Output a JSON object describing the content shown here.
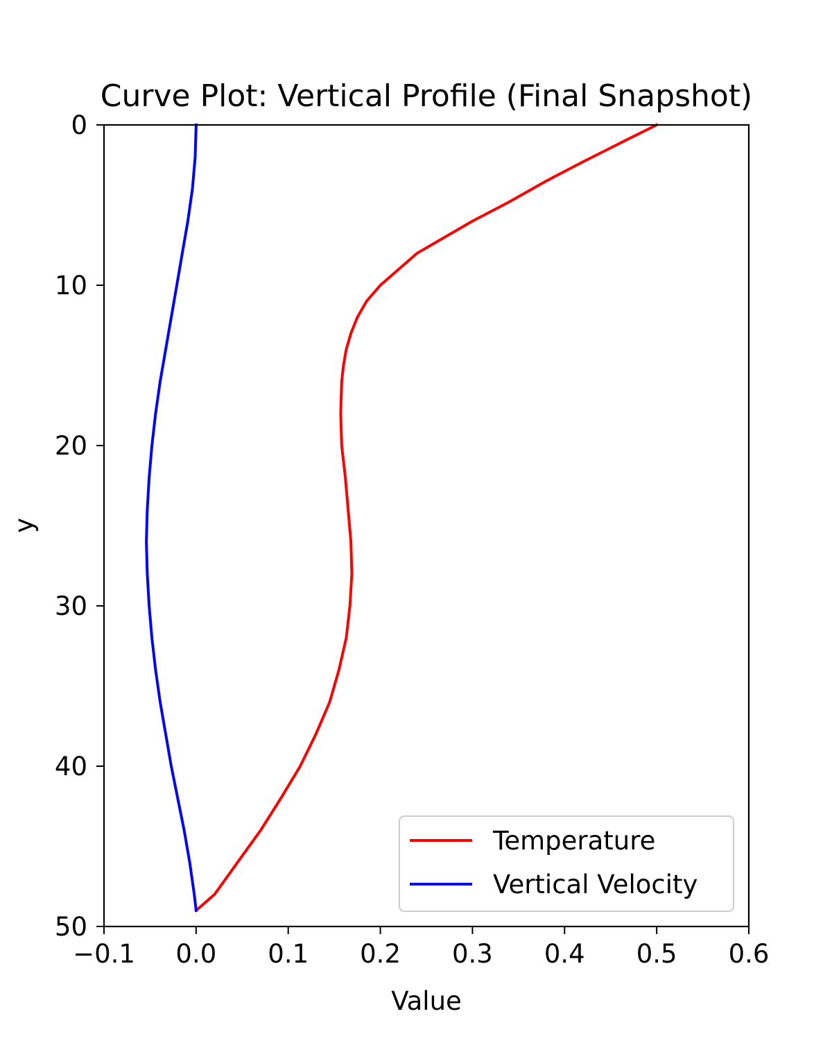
{
  "chart_data": {
    "type": "line",
    "title": "Curve Plot: Vertical Profile (Final Snapshot)",
    "xlabel": "Value",
    "ylabel": "y",
    "xlim": [
      -0.1,
      0.6
    ],
    "ylim": [
      50,
      0
    ],
    "y_inverted": true,
    "xticks": [
      "−0.1",
      "0.0",
      "0.1",
      "0.2",
      "0.3",
      "0.4",
      "0.5",
      "0.6"
    ],
    "xtick_values": [
      -0.1,
      0.0,
      0.1,
      0.2,
      0.3,
      0.4,
      0.5,
      0.6
    ],
    "yticks": [
      "0",
      "10",
      "20",
      "30",
      "40",
      "50"
    ],
    "ytick_values": [
      0,
      10,
      20,
      30,
      40,
      50
    ],
    "grid": false,
    "legend_position": "lower-right",
    "series": [
      {
        "name": "Temperature",
        "color": "#ff0000",
        "points": [
          {
            "x": 0.5,
            "y": 0
          },
          {
            "x": 0.465,
            "y": 1
          },
          {
            "x": 0.42,
            "y": 2.3
          },
          {
            "x": 0.38,
            "y": 3.5
          },
          {
            "x": 0.34,
            "y": 4.8
          },
          {
            "x": 0.3,
            "y": 6
          },
          {
            "x": 0.27,
            "y": 7
          },
          {
            "x": 0.24,
            "y": 8
          },
          {
            "x": 0.22,
            "y": 9
          },
          {
            "x": 0.2,
            "y": 10
          },
          {
            "x": 0.185,
            "y": 11
          },
          {
            "x": 0.175,
            "y": 12
          },
          {
            "x": 0.168,
            "y": 13
          },
          {
            "x": 0.163,
            "y": 14
          },
          {
            "x": 0.16,
            "y": 15
          },
          {
            "x": 0.158,
            "y": 16
          },
          {
            "x": 0.157,
            "y": 18
          },
          {
            "x": 0.158,
            "y": 20
          },
          {
            "x": 0.162,
            "y": 22
          },
          {
            "x": 0.165,
            "y": 24
          },
          {
            "x": 0.168,
            "y": 26
          },
          {
            "x": 0.169,
            "y": 28
          },
          {
            "x": 0.167,
            "y": 30
          },
          {
            "x": 0.163,
            "y": 32
          },
          {
            "x": 0.155,
            "y": 34
          },
          {
            "x": 0.145,
            "y": 36
          },
          {
            "x": 0.13,
            "y": 38
          },
          {
            "x": 0.113,
            "y": 40
          },
          {
            "x": 0.092,
            "y": 42
          },
          {
            "x": 0.07,
            "y": 44
          },
          {
            "x": 0.045,
            "y": 46
          },
          {
            "x": 0.02,
            "y": 48
          },
          {
            "x": 0.0,
            "y": 49
          }
        ]
      },
      {
        "name": "Vertical Velocity",
        "color": "#0000ff",
        "points": [
          {
            "x": 0.0,
            "y": 0
          },
          {
            "x": -0.001,
            "y": 2
          },
          {
            "x": -0.004,
            "y": 4
          },
          {
            "x": -0.009,
            "y": 6
          },
          {
            "x": -0.015,
            "y": 8
          },
          {
            "x": -0.021,
            "y": 10
          },
          {
            "x": -0.027,
            "y": 12
          },
          {
            "x": -0.033,
            "y": 14
          },
          {
            "x": -0.039,
            "y": 16
          },
          {
            "x": -0.044,
            "y": 18
          },
          {
            "x": -0.048,
            "y": 20
          },
          {
            "x": -0.051,
            "y": 22
          },
          {
            "x": -0.053,
            "y": 24
          },
          {
            "x": -0.054,
            "y": 26
          },
          {
            "x": -0.053,
            "y": 28
          },
          {
            "x": -0.051,
            "y": 30
          },
          {
            "x": -0.048,
            "y": 32
          },
          {
            "x": -0.044,
            "y": 34
          },
          {
            "x": -0.039,
            "y": 36
          },
          {
            "x": -0.033,
            "y": 38
          },
          {
            "x": -0.027,
            "y": 40
          },
          {
            "x": -0.02,
            "y": 42
          },
          {
            "x": -0.013,
            "y": 44
          },
          {
            "x": -0.007,
            "y": 46
          },
          {
            "x": -0.002,
            "y": 48
          },
          {
            "x": 0.0,
            "y": 49
          }
        ]
      }
    ]
  }
}
